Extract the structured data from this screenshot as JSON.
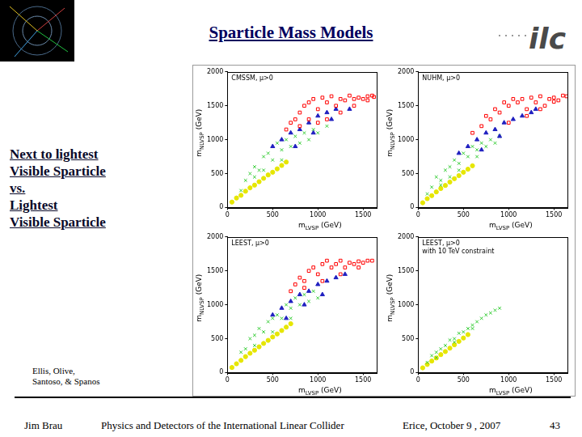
{
  "slide": {
    "title": "Sparticle Mass Models",
    "side_text": [
      "Next to lightest",
      "Visible Sparticle",
      "vs.",
      "Lightest",
      "Visible Sparticle"
    ],
    "credit": [
      "Ellis, Olive,",
      "Santoso, & Spanos"
    ],
    "logo_text": "ilc",
    "footer": {
      "author": "Jim Brau",
      "talk": "Physics and Detectors of the International Linear Collider",
      "event": "Erice, October 9 , 2007",
      "page": "43"
    }
  },
  "chart_data": [
    {
      "type": "scatter",
      "title": [
        "CMSSM, μ>0"
      ],
      "x_label": {
        "base": "m",
        "sub": "LVSP",
        "rest": " (GeV)"
      },
      "y_label": {
        "base": "m",
        "sub": "NLVSP",
        "rest": " (GeV)"
      },
      "xlim": [
        0,
        1650
      ],
      "xticks": [
        0,
        500,
        1000,
        1500
      ],
      "ylim": [
        0,
        2000
      ],
      "yticks": [
        0,
        500,
        1000,
        1500,
        2000
      ],
      "grid": false,
      "series": [
        {
          "color": "#ff0000",
          "marker": "square",
          "x": [
            650,
            700,
            750,
            800,
            850,
            900,
            950,
            1000,
            1050,
            1100,
            1150,
            1200,
            1250,
            1300,
            1350,
            1400,
            1450,
            1500,
            1550,
            1600,
            1100,
            1250,
            1000,
            900,
            800,
            1400,
            1550,
            1620
          ],
          "y": [
            1150,
            1250,
            1300,
            1400,
            1500,
            1550,
            1600,
            1450,
            1620,
            1550,
            1640,
            1500,
            1600,
            1580,
            1650,
            1600,
            1620,
            1600,
            1640,
            1650,
            1300,
            1400,
            1250,
            1300,
            1200,
            1500,
            1580,
            1630
          ]
        },
        {
          "color": "#2020c0",
          "marker": "triangle",
          "x": [
            500,
            600,
            700,
            800,
            900,
            1000,
            1100,
            1200,
            750,
            950,
            1150,
            1350
          ],
          "y": [
            900,
            1000,
            1100,
            1150,
            1250,
            1350,
            1400,
            1450,
            900,
            1100,
            1300,
            1450
          ]
        },
        {
          "color": "#33cc33",
          "marker": "cross",
          "x": [
            150,
            200,
            250,
            300,
            350,
            400,
            450,
            500,
            550,
            600,
            650,
            700,
            750,
            800,
            850,
            900,
            950,
            1000,
            1100,
            400,
            300,
            600
          ],
          "y": [
            250,
            400,
            500,
            600,
            550,
            750,
            800,
            700,
            950,
            850,
            1000,
            900,
            1050,
            950,
            1100,
            1000,
            1150,
            1100,
            1200,
            550,
            450,
            700
          ]
        },
        {
          "color": "#e6e600",
          "marker": "circle",
          "x": [
            50,
            100,
            150,
            200,
            250,
            300,
            350,
            400,
            450,
            500,
            550,
            600,
            650
          ],
          "y": [
            80,
            140,
            180,
            240,
            290,
            330,
            380,
            430,
            480,
            520,
            570,
            620,
            670
          ]
        }
      ]
    },
    {
      "type": "scatter",
      "title": [
        "NUHM, μ>0"
      ],
      "x_label": {
        "base": "m",
        "sub": "LVSP",
        "rest": " (GeV)"
      },
      "y_label": {
        "base": "m",
        "sub": "NLVSP",
        "rest": " (GeV)"
      },
      "xlim": [
        0,
        1650
      ],
      "xticks": [
        0,
        500,
        1000,
        1500
      ],
      "ylim": [
        0,
        2000
      ],
      "yticks": [
        0,
        500,
        1000,
        1500,
        2000
      ],
      "grid": false,
      "series": [
        {
          "color": "#ff0000",
          "marker": "square",
          "x": [
            600,
            700,
            750,
            800,
            850,
            900,
            950,
            1000,
            1050,
            1100,
            1150,
            1200,
            1250,
            1300,
            1350,
            1400,
            1450,
            1500,
            1550,
            1600,
            1640,
            1200,
            1000,
            1350,
            1500
          ],
          "y": [
            1100,
            1200,
            1350,
            1300,
            1450,
            1400,
            1550,
            1500,
            1600,
            1550,
            1600,
            1450,
            1620,
            1550,
            1640,
            1500,
            1600,
            1620,
            1580,
            1650,
            1640,
            1350,
            1250,
            1450,
            1560
          ]
        },
        {
          "color": "#2020c0",
          "marker": "triangle",
          "x": [
            450,
            550,
            650,
            750,
            850,
            950,
            1050,
            1150,
            1250,
            700,
            900,
            1300
          ],
          "y": [
            800,
            900,
            1000,
            1100,
            1150,
            1250,
            1300,
            1350,
            1400,
            850,
            1050,
            1450
          ]
        },
        {
          "color": "#33cc33",
          "marker": "cross",
          "x": [
            100,
            150,
            200,
            250,
            300,
            350,
            400,
            450,
            500,
            550,
            600,
            650,
            700,
            750,
            800,
            850,
            900,
            250,
            450,
            650,
            350
          ],
          "y": [
            200,
            300,
            450,
            400,
            550,
            600,
            700,
            650,
            800,
            750,
            900,
            850,
            950,
            900,
            1000,
            950,
            1050,
            330,
            550,
            750,
            450
          ]
        },
        {
          "color": "#e6e600",
          "marker": "circle",
          "x": [
            50,
            100,
            150,
            200,
            250,
            300,
            350,
            400,
            450,
            500,
            550,
            600
          ],
          "y": [
            70,
            130,
            175,
            230,
            280,
            325,
            375,
            425,
            470,
            520,
            565,
            615
          ]
        }
      ]
    },
    {
      "type": "scatter",
      "title": [
        "LEEST, μ>0"
      ],
      "x_label": {
        "base": "m",
        "sub": "LVSP",
        "rest": " (GeV)"
      },
      "y_label": {
        "base": "m",
        "sub": "NLVSP",
        "rest": " (GeV)"
      },
      "xlim": [
        0,
        1650
      ],
      "xticks": [
        0,
        500,
        1000,
        1500
      ],
      "ylim": [
        0,
        2000
      ],
      "yticks": [
        0,
        500,
        1000,
        1500,
        2000
      ],
      "grid": false,
      "series": [
        {
          "color": "#ff0000",
          "marker": "square",
          "x": [
            700,
            750,
            800,
            850,
            900,
            950,
            1000,
            1050,
            1100,
            1150,
            1200,
            1250,
            1300,
            1350,
            1400,
            1450,
            1500,
            1550,
            1600,
            850,
            1050,
            1250,
            1450
          ],
          "y": [
            1200,
            1300,
            1400,
            1350,
            1500,
            1550,
            1450,
            1600,
            1650,
            1550,
            1600,
            1650,
            1550,
            1620,
            1600,
            1640,
            1620,
            1650,
            1650,
            1250,
            1350,
            1450,
            1550
          ]
        },
        {
          "color": "#2020c0",
          "marker": "triangle",
          "x": [
            500,
            600,
            700,
            800,
            900,
            1000,
            1100,
            1200,
            1300,
            650,
            850,
            1050
          ],
          "y": [
            850,
            950,
            1050,
            1150,
            1200,
            1300,
            1350,
            1400,
            1450,
            800,
            1000,
            1150
          ]
        },
        {
          "color": "#33cc33",
          "marker": "cross",
          "x": [
            150,
            200,
            250,
            300,
            350,
            400,
            450,
            500,
            550,
            600,
            650,
            700,
            750,
            800,
            850,
            900,
            950,
            1000,
            300,
            500,
            700
          ],
          "y": [
            300,
            350,
            500,
            550,
            650,
            600,
            750,
            800,
            850,
            800,
            1000,
            950,
            1100,
            1000,
            1150,
            1050,
            1200,
            1100,
            400,
            600,
            800
          ]
        },
        {
          "color": "#e6e600",
          "marker": "circle",
          "x": [
            50,
            100,
            150,
            200,
            250,
            300,
            350,
            400,
            450,
            500,
            550,
            600,
            650,
            700
          ],
          "y": [
            75,
            130,
            180,
            235,
            285,
            330,
            380,
            430,
            475,
            525,
            570,
            620,
            670,
            720
          ]
        }
      ]
    },
    {
      "type": "scatter",
      "title": [
        "LEEST, μ>0",
        "with 10 TeV constraint"
      ],
      "x_label": {
        "base": "m",
        "sub": "LVSP",
        "rest": " (GeV)"
      },
      "y_label": {
        "base": "m",
        "sub": "NLVSP",
        "rest": " (GeV)"
      },
      "xlim": [
        0,
        1650
      ],
      "xticks": [
        0,
        500,
        1000,
        1500
      ],
      "ylim": [
        0,
        2000
      ],
      "yticks": [
        0,
        500,
        1000,
        1500,
        2000
      ],
      "grid": false,
      "series": [
        {
          "color": "#33cc33",
          "marker": "cross",
          "x": [
            100,
            150,
            200,
            250,
            300,
            350,
            400,
            450,
            500,
            550,
            600,
            650,
            700,
            750,
            800,
            850,
            900,
            400,
            600,
            200
          ],
          "y": [
            150,
            250,
            300,
            350,
            400,
            480,
            500,
            580,
            600,
            650,
            700,
            750,
            800,
            850,
            880,
            920,
            950,
            450,
            650,
            220
          ]
        },
        {
          "color": "#e6e600",
          "marker": "circle",
          "x": [
            50,
            100,
            150,
            200,
            250,
            300,
            350,
            400,
            450,
            500,
            550
          ],
          "y": [
            70,
            120,
            170,
            215,
            265,
            310,
            360,
            410,
            460,
            510,
            560
          ]
        }
      ]
    }
  ]
}
